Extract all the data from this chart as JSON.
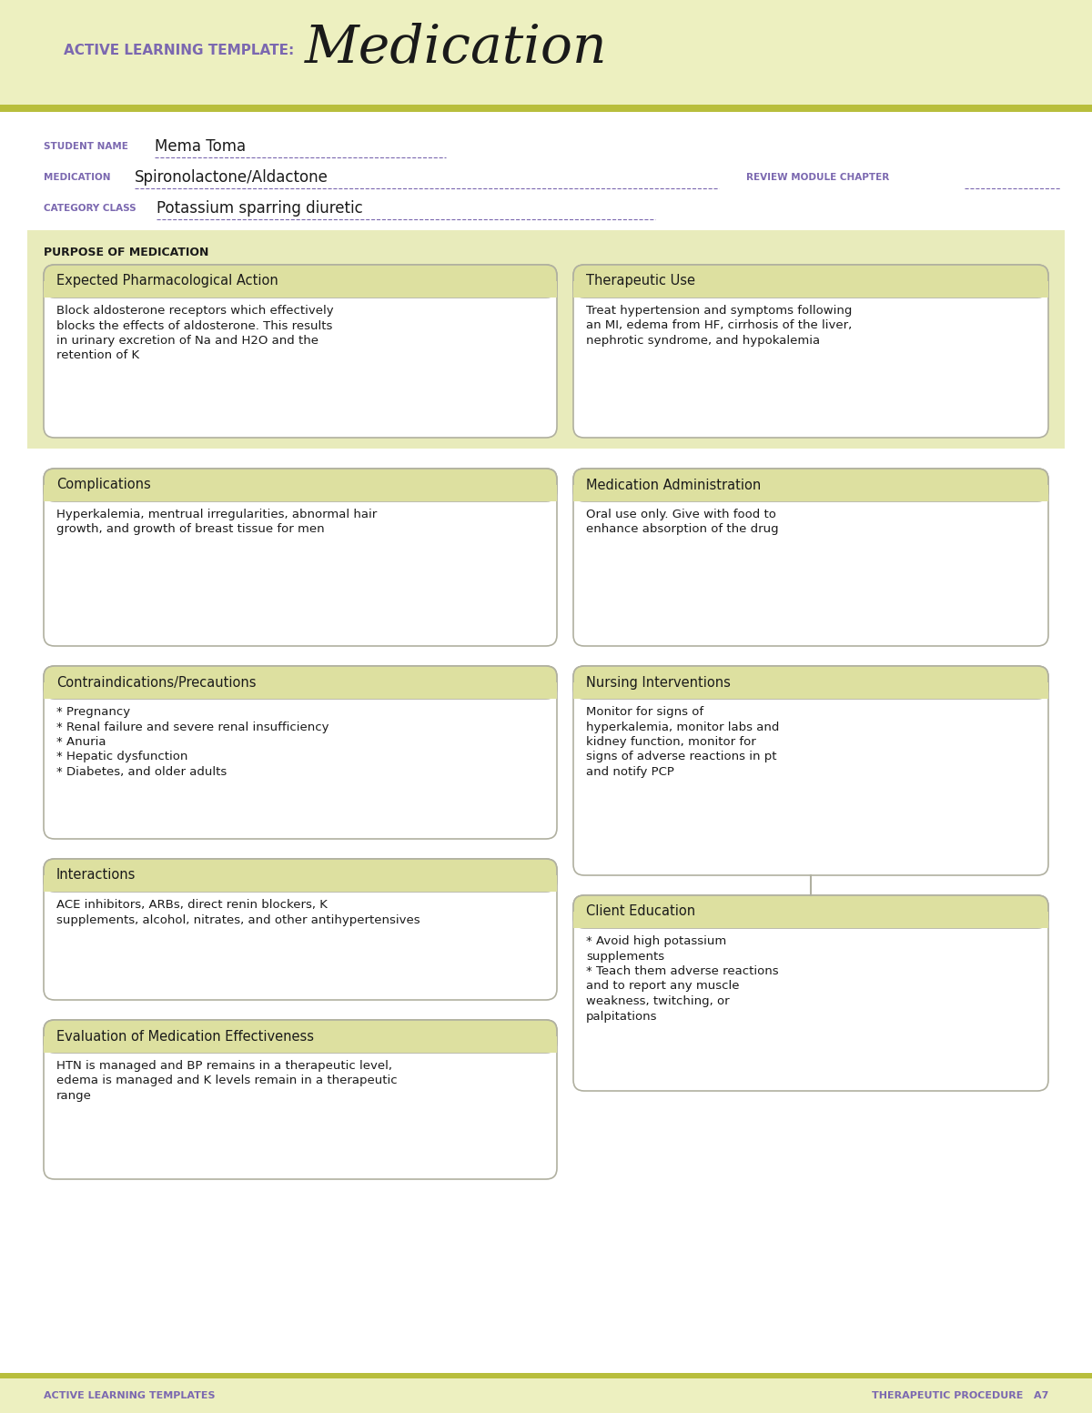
{
  "white": "#ffffff",
  "page_bg": "#ffffff",
  "header_band_bg": "#edf0c0",
  "olive_line": "#b8be3c",
  "purpose_band_bg": "#e8ebbb",
  "box_header_bg": "#dde0a0",
  "box_body_bg": "#ffffff",
  "box_border": "#b0b0a0",
  "text_dark": "#1a1a1a",
  "purple_label": "#7b68b0",
  "footer_band_bg": "#edf0c0",
  "title_label": "ACTIVE LEARNING TEMPLATE:",
  "title_main": "Medication",
  "student_label": "STUDENT NAME",
  "student_name": "Mema Toma",
  "medication_label": "MEDICATION",
  "medication_name": "Spironolactone/Aldactone",
  "review_label": "REVIEW MODULE CHAPTER",
  "category_label": "CATEGORY CLASS",
  "category_name": "Potassium sparring diuretic",
  "purpose_label": "PURPOSE OF MEDICATION",
  "box1_title": "Expected Pharmacological Action",
  "box1_text": "Block aldosterone receptors which effectively\nblocks the effects of aldosterone. This results\nin urinary excretion of Na and H2O and the\nretention of K",
  "box2_title": "Therapeutic Use",
  "box2_text": "Treat hypertension and symptoms following\nan MI, edema from HF, cirrhosis of the liver,\nnephrotic syndrome, and hypokalemia",
  "box3_title": "Complications",
  "box3_text": "Hyperkalemia, mentrual irregularities, abnormal hair\ngrowth, and growth of breast tissue for men",
  "box4_title": "Medication Administration",
  "box4_text": "Oral use only. Give with food to\nenhance absorption of the drug",
  "box5_title": "Contraindications/Precautions",
  "box5_text": "* Pregnancy\n* Renal failure and severe renal insufficiency\n* Anuria\n* Hepatic dysfunction\n* Diabetes, and older adults",
  "box6_title": "Nursing Interventions",
  "box6_text": "Monitor for signs of\nhyperkalemia, monitor labs and\nkidney function, monitor for\nsigns of adverse reactions in pt\nand notify PCP",
  "box7_title": "Interactions",
  "box7_text": "ACE inhibitors, ARBs, direct renin blockers, K\nsupplements, alcohol, nitrates, and other antihypertensives",
  "box8_title": "Client Education",
  "box8_text": "* Avoid high potassium\nsupplements\n* Teach them adverse reactions\nand to report any muscle\nweakness, twitching, or\npalpitations",
  "box9_title": "Evaluation of Medication Effectiveness",
  "box9_text": "HTN is managed and BP remains in a therapeutic level,\nedema is managed and K levels remain in a therapeutic\nrange",
  "footer_left": "ACTIVE LEARNING TEMPLATES",
  "footer_right": "THERAPEUTIC PROCEDURE   A7"
}
